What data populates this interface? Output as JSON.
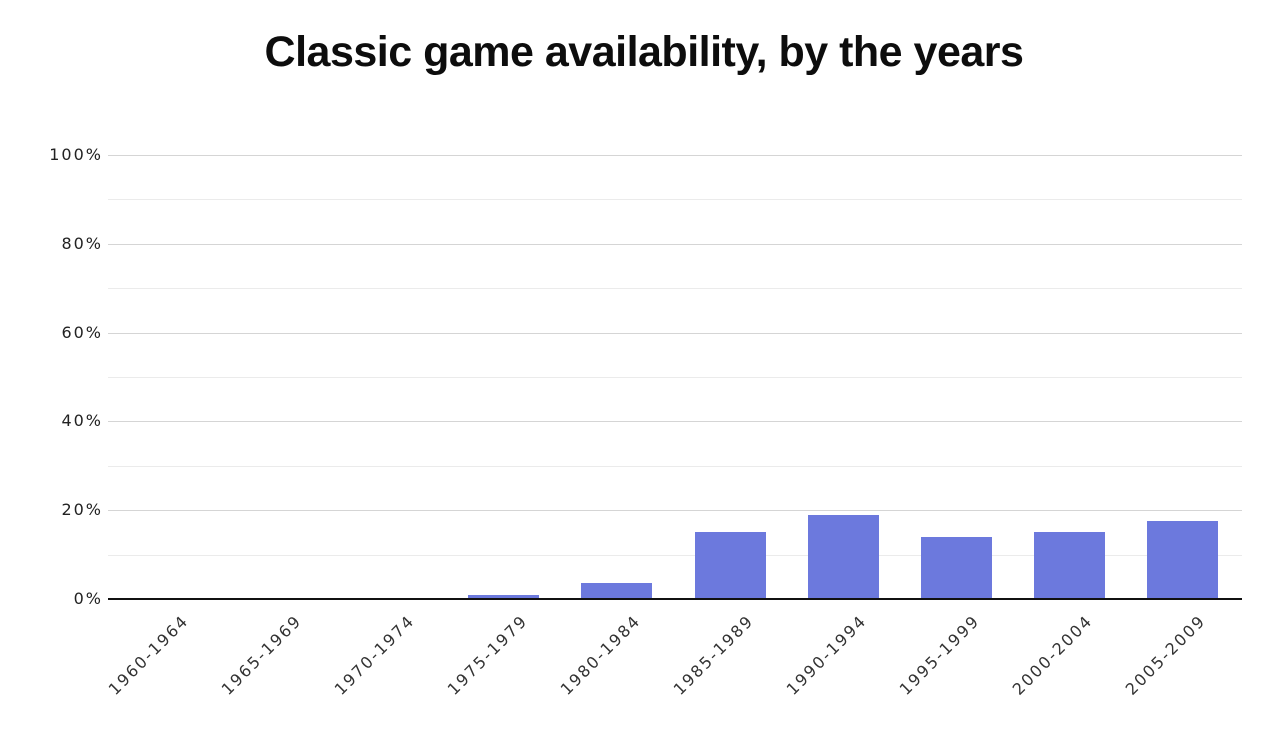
{
  "chart_data": {
    "type": "bar",
    "title": "Classic game availability, by the years",
    "categories": [
      "1960-1964",
      "1965-1969",
      "1970-1974",
      "1975-1979",
      "1980-1984",
      "1985-1989",
      "1990-1994",
      "1995-1999",
      "2000-2004",
      "2005-2009"
    ],
    "values": [
      0,
      0,
      0,
      1,
      3.5,
      15,
      19,
      14,
      15,
      17.5
    ],
    "xlabel": "",
    "ylabel": "",
    "ylim": [
      0,
      100
    ],
    "y_tick_labels": [
      "0%",
      "20%",
      "40%",
      "60%",
      "80%",
      "100%"
    ],
    "grid_step_percent": 10,
    "labeled_step_percent": 20,
    "grid": "on",
    "legend": "none",
    "colors": {
      "bar": "#6c79dd",
      "axis_line": "#111111",
      "grid_major": "#d5d5d5",
      "grid_minor": "#ebebeb",
      "y_tick_text": "#222222",
      "x_tick_text": "#333333",
      "title_text": "#0d0d0d",
      "background": "#ffffff"
    }
  }
}
